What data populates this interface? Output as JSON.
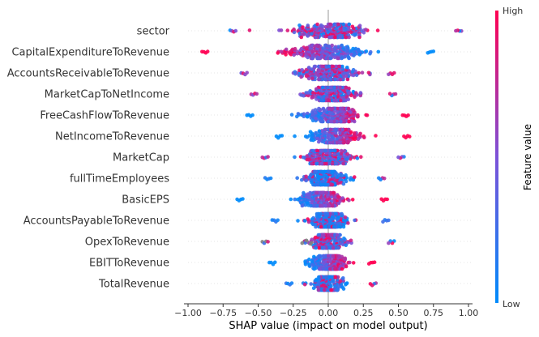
{
  "chart_data": {
    "type": "scatter",
    "subtype": "shap-beeswarm",
    "title": "",
    "xlabel": "SHAP value (impact on model output)",
    "xlim": [
      -1.0,
      1.0
    ],
    "xticks": [
      "−1.00",
      "−0.75",
      "−0.50",
      "−0.25",
      "0.00",
      "0.25",
      "0.50",
      "0.75",
      "1.00"
    ],
    "xtick_values": [
      -1.0,
      -0.75,
      -0.5,
      -0.25,
      0.0,
      0.25,
      0.5,
      0.75,
      1.0
    ],
    "colorbar": {
      "label": "Feature value",
      "high": "High",
      "low": "Low",
      "high_color": "#ff0052",
      "low_color": "#008bfb",
      "missing_color": "#808080"
    },
    "features": [
      {
        "name": "sector",
        "min": -0.7,
        "max": 0.95,
        "center": 0.02,
        "spread": 0.32,
        "mode": "mixed"
      },
      {
        "name": "CapitalExpenditureToRevenue",
        "min": -0.9,
        "max": 0.75,
        "center": -0.02,
        "spread": 0.3,
        "mode": "low-right"
      },
      {
        "name": "AccountsReceivableToRevenue",
        "min": -0.62,
        "max": 0.47,
        "center": 0.0,
        "spread": 0.22,
        "mode": "mixed"
      },
      {
        "name": "MarketCapToNetIncome",
        "min": -0.55,
        "max": 0.48,
        "center": 0.03,
        "spread": 0.2,
        "mode": "mixed"
      },
      {
        "name": "FreeCashFlowToRevenue",
        "min": -0.58,
        "max": 0.57,
        "center": 0.05,
        "spread": 0.22,
        "mode": "high-right"
      },
      {
        "name": "NetIncomeToRevenue",
        "min": -0.37,
        "max": 0.58,
        "center": 0.05,
        "spread": 0.2,
        "mode": "high-right"
      },
      {
        "name": "MarketCap",
        "min": -0.47,
        "max": 0.54,
        "center": 0.0,
        "spread": 0.18,
        "mode": "mixed"
      },
      {
        "name": "fullTimeEmployees",
        "min": -0.45,
        "max": 0.4,
        "center": -0.02,
        "spread": 0.16,
        "mode": "low-dominant"
      },
      {
        "name": "BasicEPS",
        "min": -0.65,
        "max": 0.42,
        "center": -0.05,
        "spread": 0.18,
        "mode": "high-right"
      },
      {
        "name": "AccountsPayableToRevenue",
        "min": -0.4,
        "max": 0.43,
        "center": 0.0,
        "spread": 0.15,
        "mode": "low-dominant"
      },
      {
        "name": "OpexToRevenue",
        "min": -0.47,
        "max": 0.47,
        "center": 0.0,
        "spread": 0.15,
        "mode": "gray-left"
      },
      {
        "name": "EBITToRevenue",
        "min": -0.42,
        "max": 0.33,
        "center": 0.0,
        "spread": 0.14,
        "mode": "high-right"
      },
      {
        "name": "TotalRevenue",
        "min": -0.3,
        "max": 0.34,
        "center": 0.0,
        "spread": 0.12,
        "mode": "low-dominant"
      }
    ]
  }
}
